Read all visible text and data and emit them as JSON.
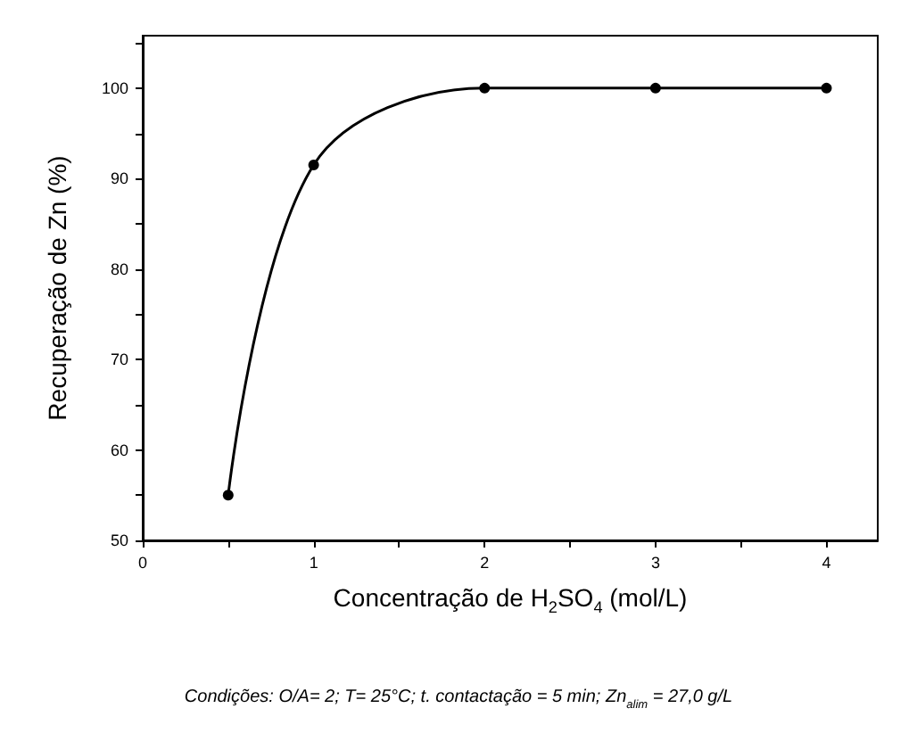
{
  "chart_data": {
    "type": "line",
    "xlabel": "Concentração de H$_{2}$SO$_{4}$ (mol/L)",
    "ylabel": "Recuperação de Zn (%)",
    "annotations": [
      "Condições: O/A= 2; T= 25°C; t. contactação = 5 min; Zn$_{alim}$ = 27,0 g/L"
    ],
    "x": [
      0.5,
      1,
      2,
      3,
      4
    ],
    "series": [
      {
        "color": "#000000",
        "values": [
          55,
          91.5,
          100,
          100,
          100
        ]
      }
    ],
    "xlim": [
      0,
      4.3
    ],
    "xticks": [
      0,
      {
        "value": 0.5,
        "label": null
      },
      1,
      {
        "value": 1.5,
        "label": null
      },
      2,
      {
        "value": 2.5,
        "label": null
      },
      3,
      {
        "value": 3.5,
        "label": null
      },
      4
    ],
    "ylim": [
      50,
      105.8
    ],
    "yticks": [
      50,
      {
        "value": 55,
        "label": null
      },
      60,
      {
        "value": 65,
        "label": null
      },
      70,
      {
        "value": 75,
        "label": null
      },
      80,
      {
        "value": 85,
        "label": null
      },
      90,
      {
        "value": 95,
        "label": null
      },
      100,
      {
        "value": 105,
        "label": null
      }
    ],
    "grid": false,
    "marker": "circle",
    "line_style": "solid"
  }
}
